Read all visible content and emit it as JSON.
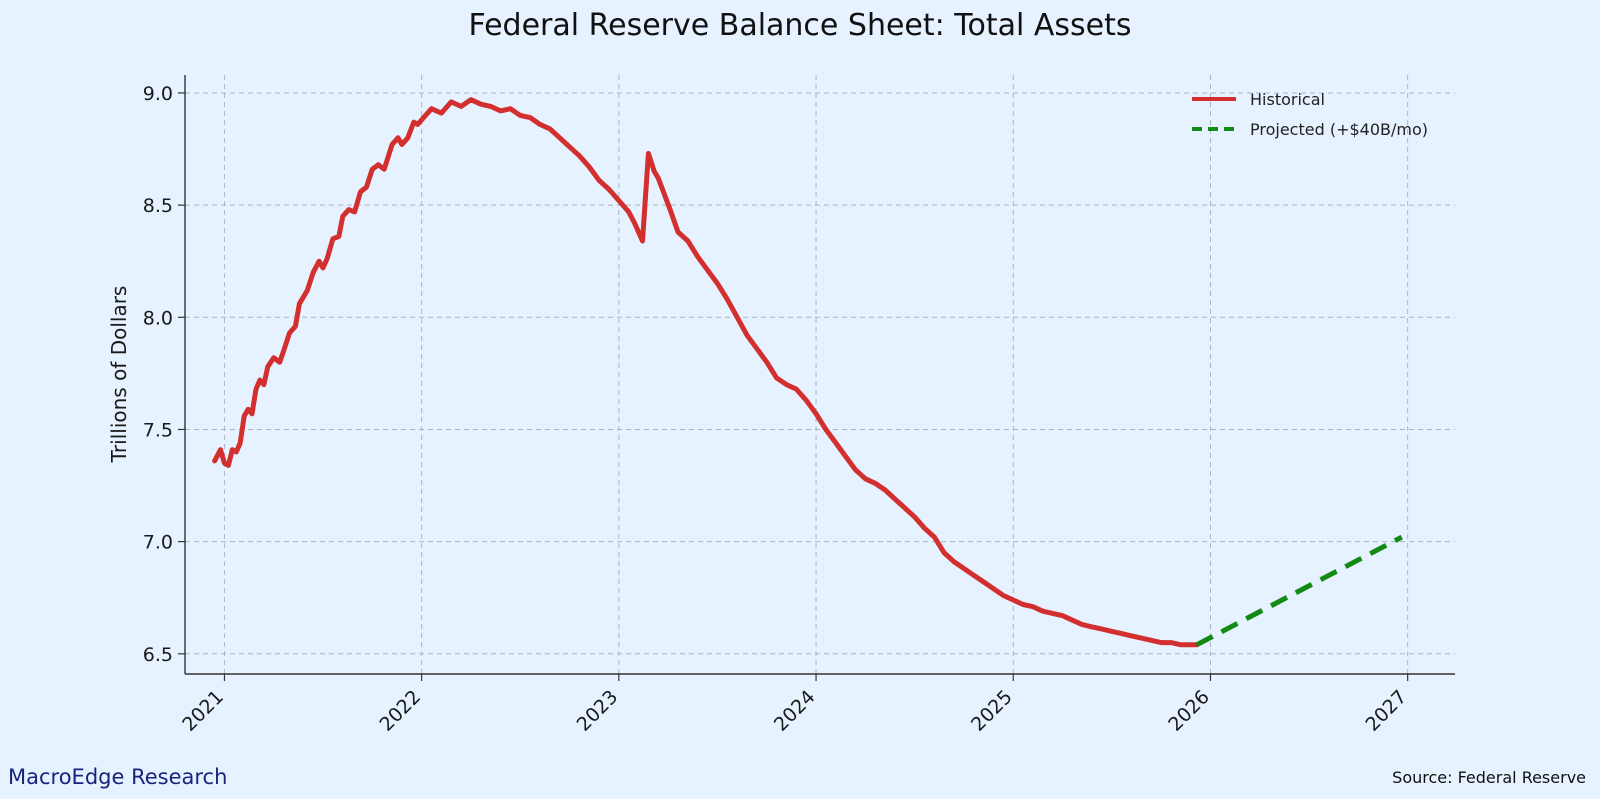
{
  "chart_data": {
    "type": "line",
    "title": "Federal Reserve Balance Sheet: Total Assets",
    "xlabel": "",
    "ylabel": "Trillions of Dollars",
    "xlim": [
      2020.8,
      2027.24
    ],
    "ylim": [
      6.41,
      9.08
    ],
    "grid": true,
    "legend_position": "top-right",
    "x_ticks": [
      2021,
      2022,
      2023,
      2024,
      2025,
      2026,
      2027
    ],
    "x_tick_labels": [
      "2021",
      "2022",
      "2023",
      "2024",
      "2025",
      "2026",
      "2027"
    ],
    "y_ticks": [
      6.5,
      7.0,
      7.5,
      8.0,
      8.5,
      9.0
    ],
    "y_tick_labels": [
      "6.5",
      "7.0",
      "7.5",
      "8.0",
      "8.5",
      "9.0"
    ],
    "series": [
      {
        "name": "Historical",
        "color": "#d32f2f",
        "style": "solid",
        "x": [
          2020.95,
          2020.98,
          2021.0,
          2021.02,
          2021.04,
          2021.06,
          2021.08,
          2021.1,
          2021.12,
          2021.14,
          2021.16,
          2021.18,
          2021.2,
          2021.22,
          2021.25,
          2021.28,
          2021.3,
          2021.33,
          2021.36,
          2021.38,
          2021.42,
          2021.45,
          2021.48,
          2021.5,
          2021.52,
          2021.55,
          2021.58,
          2021.6,
          2021.63,
          2021.66,
          2021.69,
          2021.72,
          2021.75,
          2021.78,
          2021.81,
          2021.85,
          2021.88,
          2021.9,
          2021.93,
          2021.96,
          2021.98,
          2022.02,
          2022.05,
          2022.1,
          2022.15,
          2022.2,
          2022.25,
          2022.3,
          2022.35,
          2022.4,
          2022.45,
          2022.5,
          2022.55,
          2022.6,
          2022.65,
          2022.7,
          2022.75,
          2022.8,
          2022.85,
          2022.9,
          2022.95,
          2023.0,
          2023.05,
          2023.08,
          2023.12,
          2023.15,
          2023.18,
          2023.2,
          2023.23,
          2023.26,
          2023.3,
          2023.35,
          2023.4,
          2023.45,
          2023.5,
          2023.55,
          2023.6,
          2023.65,
          2023.7,
          2023.75,
          2023.8,
          2023.85,
          2023.9,
          2023.95,
          2024.0,
          2024.05,
          2024.1,
          2024.15,
          2024.2,
          2024.25,
          2024.3,
          2024.35,
          2024.4,
          2024.45,
          2024.5,
          2024.55,
          2024.6,
          2024.65,
          2024.7,
          2024.75,
          2024.8,
          2024.85,
          2024.9,
          2024.95,
          2025.0,
          2025.05,
          2025.1,
          2025.15,
          2025.2,
          2025.25,
          2025.3,
          2025.35,
          2025.4,
          2025.45,
          2025.5,
          2025.55,
          2025.6,
          2025.65,
          2025.7,
          2025.75,
          2025.8,
          2025.85,
          2025.9,
          2025.93
        ],
        "values": [
          7.36,
          7.41,
          7.35,
          7.34,
          7.41,
          7.4,
          7.44,
          7.56,
          7.59,
          7.57,
          7.68,
          7.72,
          7.7,
          7.78,
          7.82,
          7.8,
          7.85,
          7.93,
          7.96,
          8.06,
          8.12,
          8.2,
          8.25,
          8.22,
          8.26,
          8.35,
          8.36,
          8.45,
          8.48,
          8.47,
          8.56,
          8.58,
          8.66,
          8.68,
          8.66,
          8.77,
          8.8,
          8.77,
          8.8,
          8.87,
          8.86,
          8.9,
          8.93,
          8.91,
          8.96,
          8.94,
          8.97,
          8.95,
          8.94,
          8.92,
          8.93,
          8.9,
          8.89,
          8.86,
          8.84,
          8.8,
          8.76,
          8.72,
          8.67,
          8.61,
          8.57,
          8.52,
          8.47,
          8.42,
          8.34,
          8.73,
          8.65,
          8.62,
          8.55,
          8.48,
          8.38,
          8.34,
          8.27,
          8.21,
          8.15,
          8.08,
          8.0,
          7.92,
          7.86,
          7.8,
          7.73,
          7.7,
          7.68,
          7.63,
          7.57,
          7.5,
          7.44,
          7.38,
          7.32,
          7.28,
          7.26,
          7.23,
          7.19,
          7.15,
          7.11,
          7.06,
          7.02,
          6.95,
          6.91,
          6.88,
          6.85,
          6.82,
          6.79,
          6.76,
          6.74,
          6.72,
          6.71,
          6.69,
          6.68,
          6.67,
          6.65,
          6.63,
          6.62,
          6.61,
          6.6,
          6.59,
          6.58,
          6.57,
          6.56,
          6.55,
          6.55,
          6.54,
          6.54,
          6.54
        ]
      },
      {
        "name": "Projected (+$40B/mo)",
        "color": "#138a13",
        "style": "dashed",
        "x": [
          2025.93,
          2026.97
        ],
        "values": [
          6.54,
          7.02
        ]
      }
    ]
  },
  "footer": {
    "brand": "MacroEdge Research",
    "source": "Source: Federal Reserve"
  }
}
